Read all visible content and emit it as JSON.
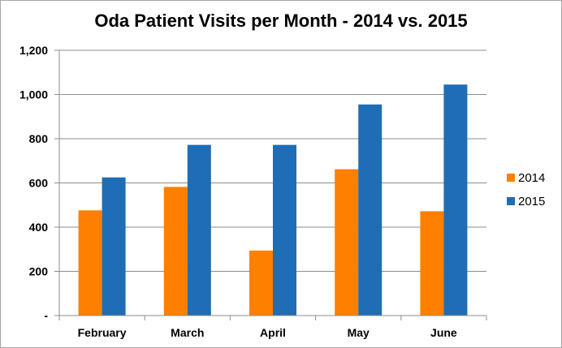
{
  "chart_data": {
    "type": "bar",
    "title": "Oda Patient Visits per Month - 2014 vs. 2015",
    "categories": [
      "February",
      "March",
      "April",
      "May",
      "June"
    ],
    "series": [
      {
        "name": "2014",
        "values": [
          476,
          582,
          294,
          662,
          472
        ],
        "color": "#ff7f00"
      },
      {
        "name": "2015",
        "values": [
          625,
          772,
          772,
          955,
          1045
        ],
        "color": "#1f6db5"
      }
    ],
    "ylim": [
      0,
      1200
    ],
    "yticks": [
      0,
      200,
      400,
      600,
      800,
      1000,
      1200
    ],
    "ytick_labels": [
      "-",
      "200",
      "400",
      "600",
      "800",
      "1,000",
      "1,200"
    ],
    "grid": true,
    "legend_position": "right"
  }
}
